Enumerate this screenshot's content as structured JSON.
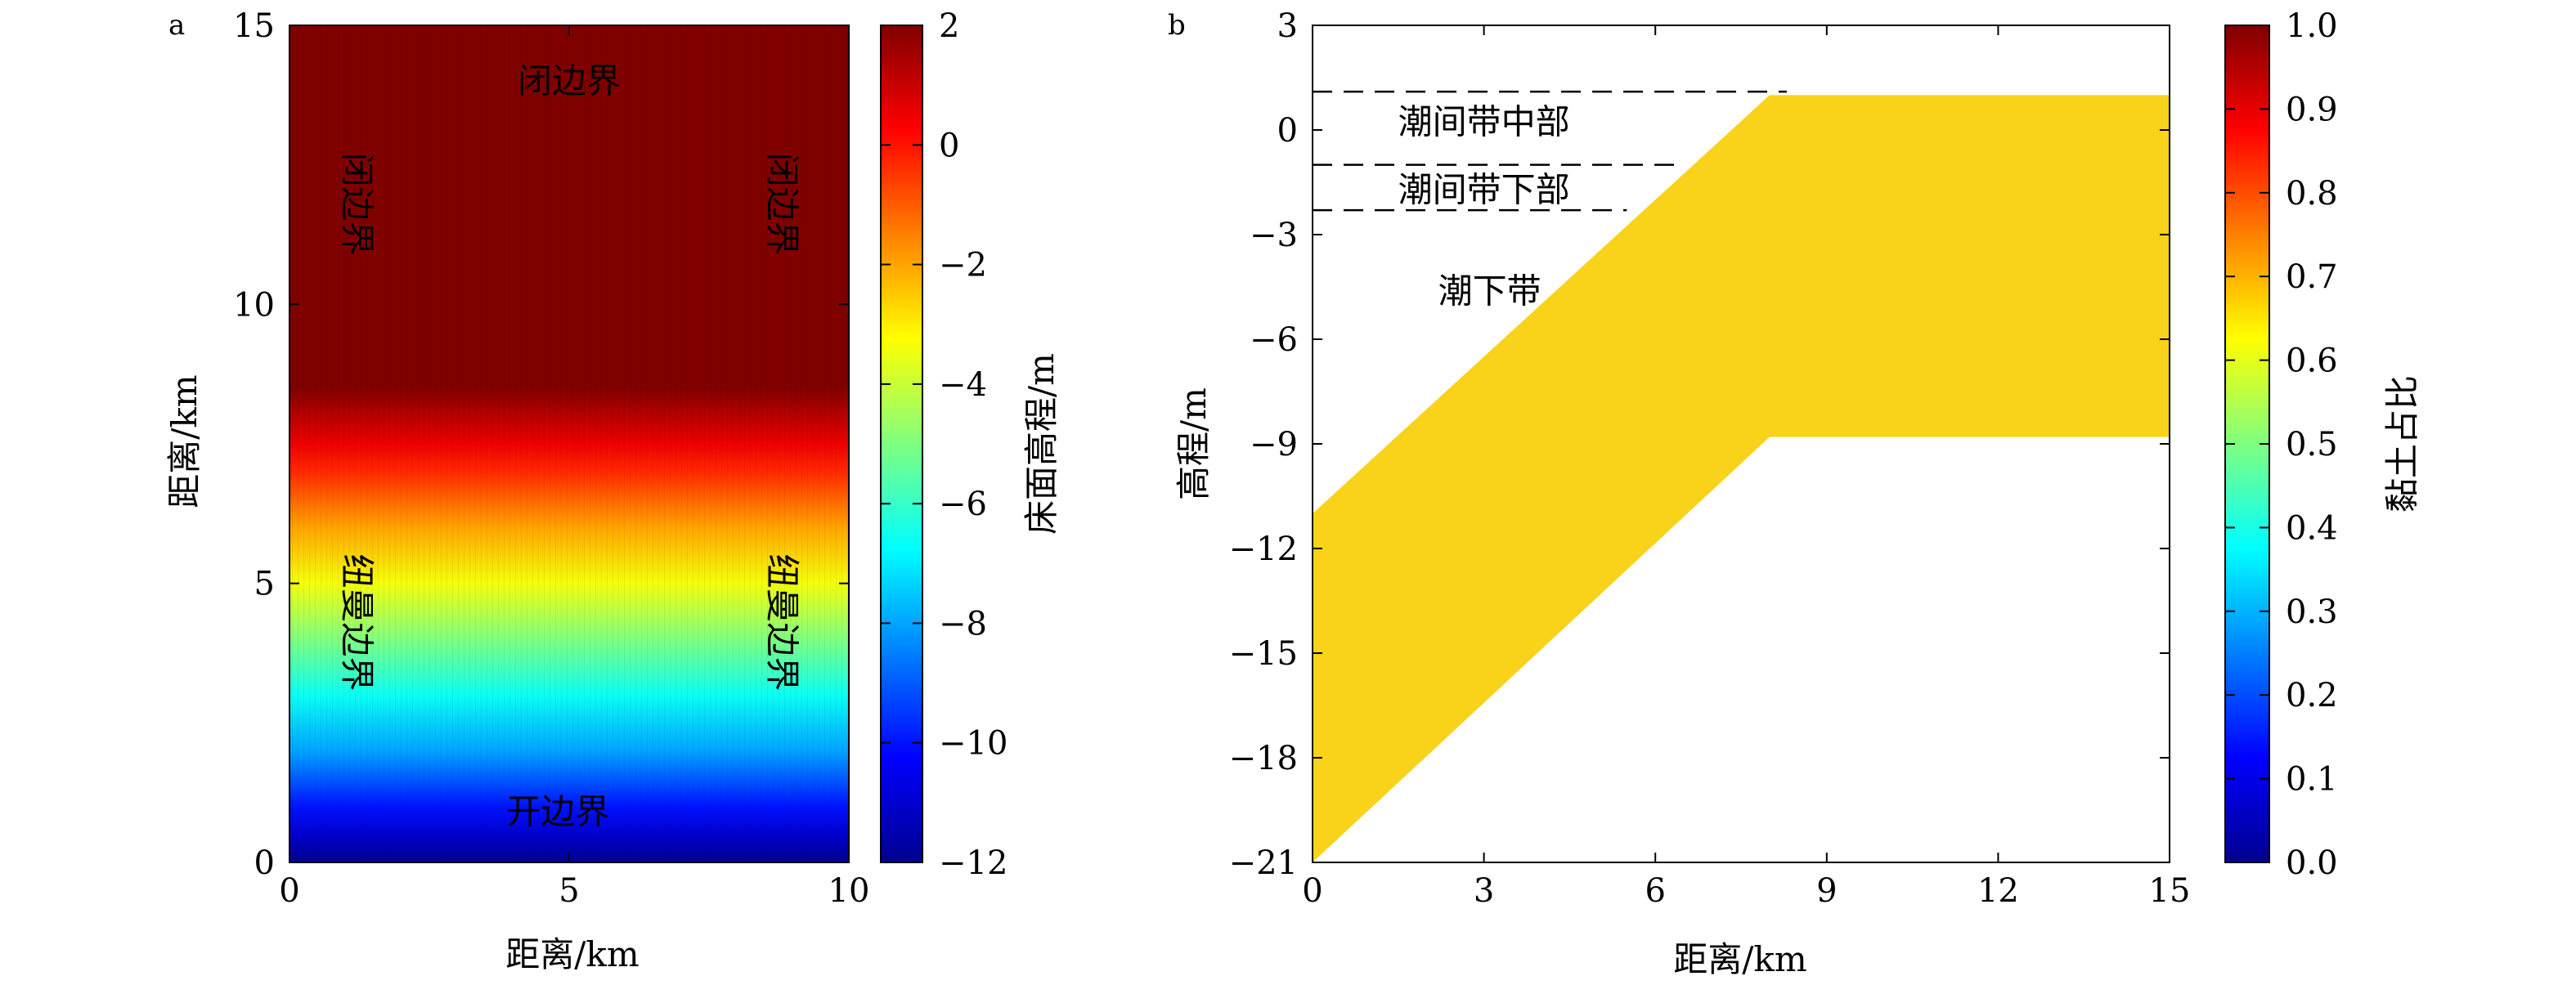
{
  "chart_data": [
    {
      "panel_label": "a",
      "type": "heatmap",
      "xlabel": "距离/km",
      "ylabel": "距离/km",
      "xlim": [
        0,
        10
      ],
      "ylim": [
        0,
        15
      ],
      "xticks": [
        "0",
        "5",
        "10"
      ],
      "yticks": [
        "0",
        "5",
        "10",
        "15"
      ],
      "elevation_profile": {
        "description": "bed elevation varies with y only",
        "y_km": [
          0,
          0.5,
          1,
          2,
          3,
          4,
          5,
          6,
          7,
          7.5,
          8.5,
          15
        ],
        "elevation_m": [
          -12,
          -11,
          -10,
          -8,
          -6.6,
          -5,
          -3.4,
          -2,
          -0.3,
          0.5,
          2,
          2
        ]
      },
      "annotations": [
        {
          "text": "闭边界",
          "x": 5,
          "y": 14.0,
          "orient": "horizontal"
        },
        {
          "text": "闭边界",
          "x": 1.2,
          "y": 11.8,
          "orient": "vertical"
        },
        {
          "text": "闭边界",
          "x": 8.8,
          "y": 11.8,
          "orient": "vertical"
        },
        {
          "text": "纽曼边界",
          "x": 1.2,
          "y": 4.3,
          "orient": "vertical"
        },
        {
          "text": "纽曼边界",
          "x": 8.8,
          "y": 4.3,
          "orient": "vertical"
        },
        {
          "text": "开边界",
          "x": 4.8,
          "y": 0.9,
          "orient": "horizontal"
        }
      ],
      "colorbar": {
        "label": "床面高程/m",
        "min": -12,
        "max": 2,
        "ticks": [
          "2",
          "0",
          "−2",
          "−4",
          "−6",
          "−8",
          "−10",
          "−12"
        ],
        "colormap": "jet"
      }
    },
    {
      "panel_label": "b",
      "type": "area",
      "xlabel": "距离/km",
      "ylabel": "高程/m",
      "xlim": [
        0,
        15
      ],
      "ylim": [
        -21,
        3
      ],
      "xticks": [
        "0",
        "3",
        "6",
        "9",
        "12",
        "15"
      ],
      "yticks": [
        "3",
        "0",
        "−3",
        "−6",
        "−9",
        "−12",
        "−15",
        "−18",
        "−21"
      ],
      "fill_color": "#f9d21a",
      "upper_boundary": {
        "x": [
          0,
          8,
          15
        ],
        "y": [
          -11,
          1,
          1
        ]
      },
      "lower_boundary": {
        "x": [
          0,
          8,
          15
        ],
        "y": [
          -21,
          -8.8,
          -8.8
        ]
      },
      "dashed_lines": [
        {
          "y": 1.1,
          "x_start": 0,
          "x_end": 8.3
        },
        {
          "y": -1.0,
          "x_start": 0,
          "x_end": 6.5
        },
        {
          "y": -2.3,
          "x_start": 0,
          "x_end": 5.5
        }
      ],
      "zone_labels": [
        {
          "text": "潮间带中部",
          "x": 3.0,
          "y": 0.25
        },
        {
          "text": "潮间带下部",
          "x": 3.0,
          "y": -1.7
        },
        {
          "text": "潮下带",
          "x": 3.1,
          "y": -4.6
        }
      ],
      "colorbar": {
        "label": "黏土占比",
        "min": 0,
        "max": 1,
        "ticks": [
          "1.0",
          "0.9",
          "0.8",
          "0.7",
          "0.6",
          "0.5",
          "0.4",
          "0.3",
          "0.2",
          "0.1",
          "0.0"
        ],
        "colormap": "jet"
      }
    }
  ]
}
